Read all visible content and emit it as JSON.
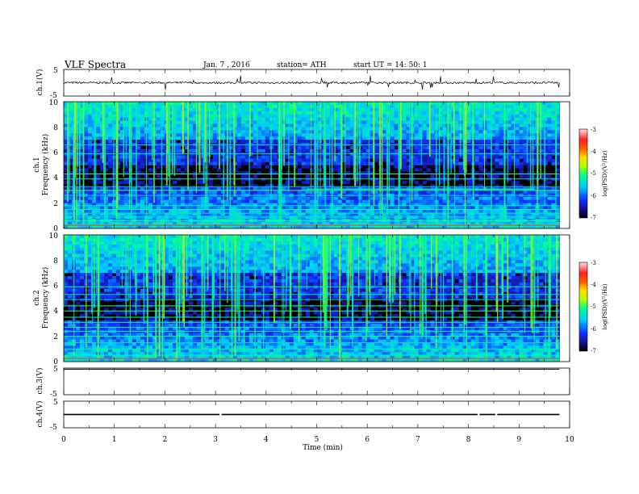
{
  "header": {
    "title": "VLF  Spectra",
    "date": "Jan.  7  , 2016",
    "station": "station= ATH",
    "start": "start  UT  =    14: 50: 1"
  },
  "chart_data": [
    {
      "type": "line",
      "panel": "ch1-waveform",
      "ylabel": "ch.1(V)",
      "ylim": [
        -5,
        5
      ],
      "yticks": [
        "5",
        "-5"
      ],
      "xlim": [
        0,
        10
      ],
      "data_end_min": 9.8,
      "series": [
        {
          "approx_level": 0.0,
          "noise_amplitude": 0.4,
          "color": "#000000"
        }
      ]
    },
    {
      "type": "heatmap",
      "panel": "ch1-spectrogram",
      "ylabel_top": "ch.1",
      "ylabel": "Frequency  (kHz)",
      "ylim": [
        0,
        10
      ],
      "yticks": [
        "0",
        "2",
        "4",
        "6",
        "8",
        "10"
      ],
      "xlim": [
        0,
        10
      ],
      "data_end_min": 9.8,
      "colorbar": {
        "label": "log(PSD)(V²/Hz)",
        "range": [
          -7,
          -3
        ],
        "ticks": [
          "-3",
          "-4",
          "-5",
          "-6",
          "-7"
        ]
      },
      "tones_khz": [
        0.3,
        0.6,
        0.9,
        1.2,
        1.5,
        1.8,
        2.6,
        3.0,
        3.3,
        3.9,
        4.3,
        5.9,
        6.6
      ],
      "highlight_lines": [
        {
          "freq_khz": 3.1,
          "start_min": 4.8,
          "end_min": 9.3
        }
      ]
    },
    {
      "type": "heatmap",
      "panel": "ch2-spectrogram",
      "ylabel_top": "ch.2",
      "ylabel": "Frequency  (kHz)",
      "ylim": [
        0,
        10
      ],
      "yticks": [
        "0",
        "2",
        "4",
        "6",
        "8",
        "10"
      ],
      "xlim": [
        0,
        10
      ],
      "data_end_min": 9.8,
      "colorbar": {
        "label": "log(PSD)(V²/Hz)",
        "range": [
          -7,
          -3
        ],
        "ticks": [
          "-3",
          "-4",
          "-5",
          "-6",
          "-7"
        ]
      },
      "tones_khz": [
        0.5,
        1.0,
        1.5,
        2.0,
        2.4,
        2.7,
        3.1,
        3.5,
        4.0,
        4.4,
        4.9,
        5.3,
        5.9
      ]
    },
    {
      "type": "line",
      "panel": "ch3-waveform",
      "ylabel": "ch.3(V)",
      "ylim": [
        -5,
        5
      ],
      "yticks": [
        "5",
        "-5"
      ],
      "xlim": [
        0,
        10
      ],
      "data_end_min": 9.8,
      "series": [
        {
          "approx_level": 4.6,
          "color": "#000000"
        }
      ]
    },
    {
      "type": "line",
      "panel": "ch4-waveform",
      "ylabel": "ch.4(V)",
      "ylim": [
        -5,
        5
      ],
      "yticks": [
        "5",
        "-5"
      ],
      "xlim": [
        0,
        10
      ],
      "data_end_min": 9.8,
      "series": [
        {
          "approx_level": 0.0,
          "band_halfwidth": 0.25,
          "gaps_min": [
            3.1,
            8.2,
            8.55
          ],
          "color": "#000000"
        }
      ]
    }
  ],
  "xaxis": {
    "label": "Time  (min)",
    "ticks": [
      "0",
      "1",
      "2",
      "3",
      "4",
      "5",
      "6",
      "7",
      "8",
      "9",
      "10"
    ],
    "range": [
      0,
      10
    ]
  }
}
